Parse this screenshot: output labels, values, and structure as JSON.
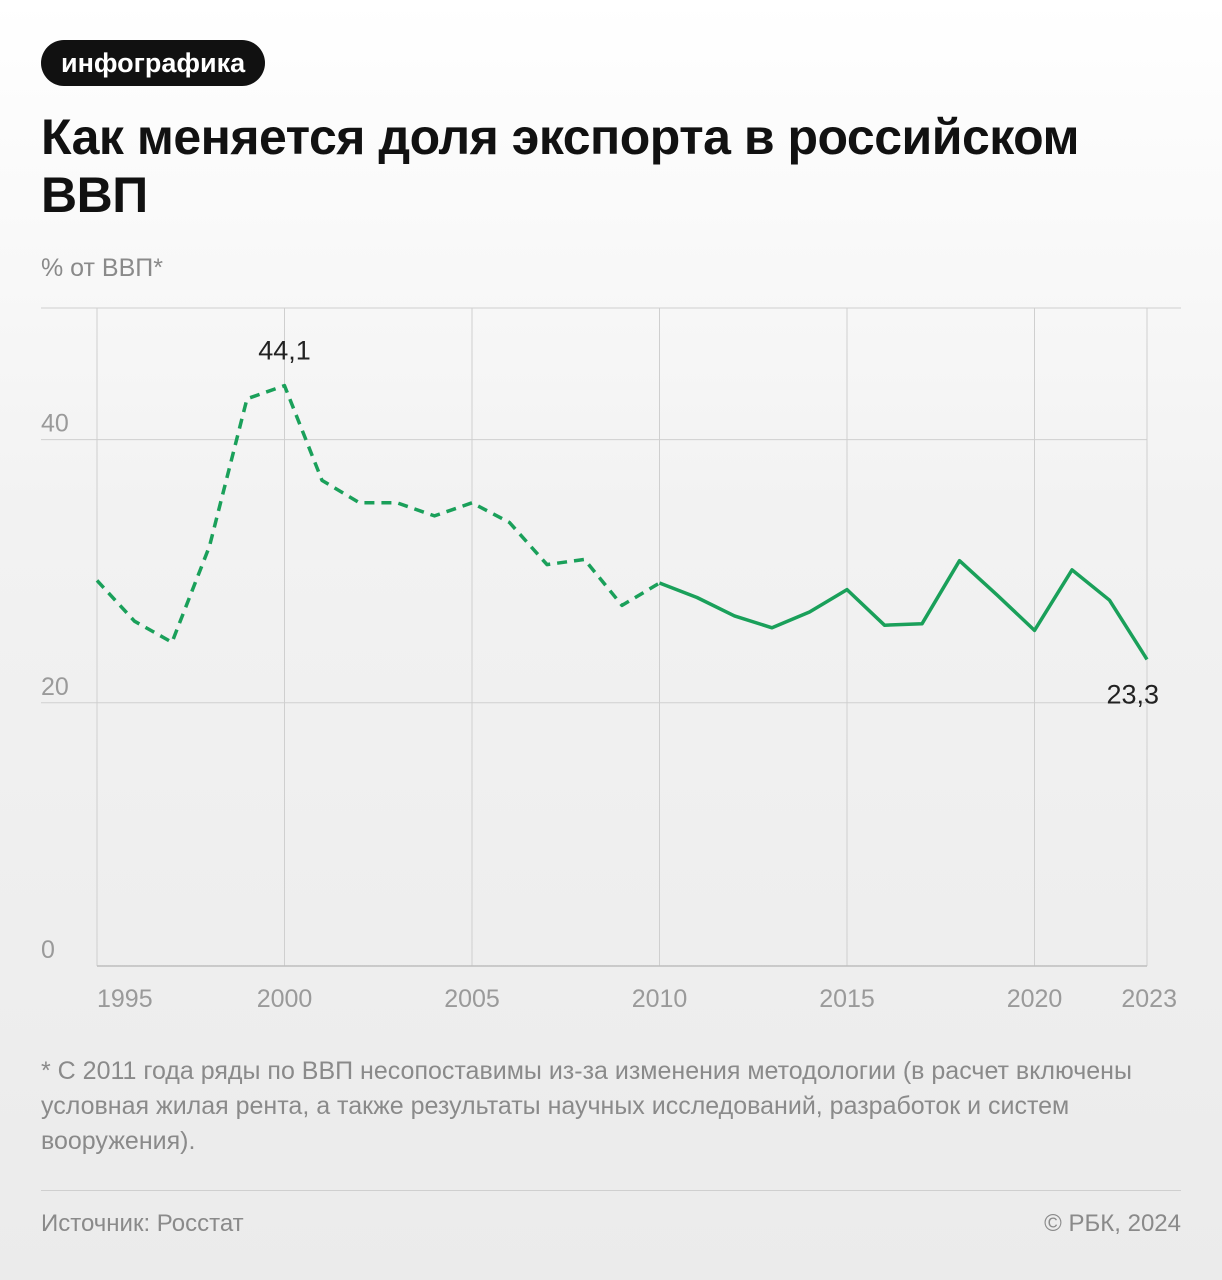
{
  "header": {
    "tag": "инфографика",
    "title": "Как меняется доля экспорта в российском ВВП",
    "unit": "% от ВВП*"
  },
  "chart_data": {
    "type": "line",
    "ylim": [
      0,
      50
    ],
    "y_ticks": [
      0,
      20,
      40
    ],
    "x_ticks": [
      1995,
      2000,
      2005,
      2010,
      2015,
      2020,
      2023
    ],
    "grid": true,
    "line_color": "#1aa05a",
    "dashed_until": 2010,
    "series": [
      {
        "x": [
          1995,
          1996,
          1997,
          1998,
          1999,
          2000,
          2001,
          2002,
          2003,
          2004,
          2005,
          2006,
          2007,
          2008,
          2009,
          2010,
          2011,
          2012,
          2013,
          2014,
          2015,
          2016,
          2017,
          2018,
          2019,
          2020,
          2021,
          2022,
          2023
        ],
        "values": [
          29.3,
          26.2,
          24.6,
          31.9,
          43.1,
          44.1,
          36.9,
          35.2,
          35.2,
          34.2,
          35.2,
          33.7,
          30.5,
          30.9,
          27.4,
          29.1,
          28.0,
          26.6,
          25.7,
          26.9,
          28.6,
          25.9,
          26.0,
          30.8,
          28.2,
          25.5,
          30.1,
          27.8,
          23.3
        ]
      }
    ],
    "annotations": [
      {
        "x": 2000,
        "text": "44,1"
      },
      {
        "x": 2023,
        "text": "23,3"
      }
    ]
  },
  "footnote": "* С 2011 года ряды по ВВП несопоставимы из-за изменения методологии (в расчет включены условная жилая рента, а также результаты научных исследований, разработок и систем вооружения).",
  "footer": {
    "source": "Источник: Росстат",
    "copyright": "© РБК, 2024"
  }
}
